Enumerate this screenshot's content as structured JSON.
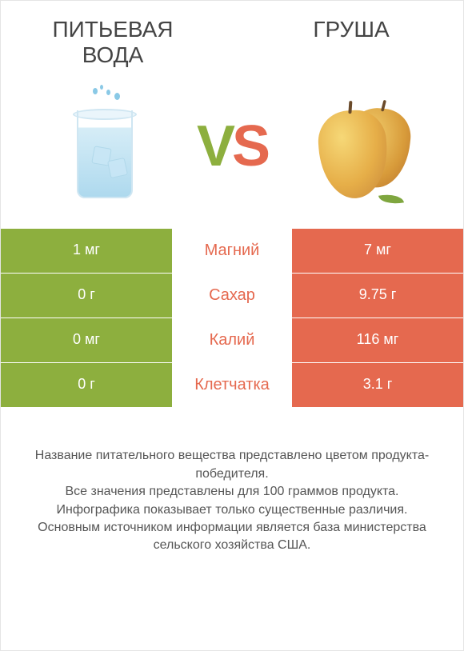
{
  "colors": {
    "left_product": "#8DAF3E",
    "right_product": "#E5694F",
    "background": "#ffffff",
    "row_gap": "#ffffff",
    "text": "#444444",
    "footer_text": "#555555"
  },
  "typography": {
    "title_fontsize": 28,
    "vs_fontsize": 72,
    "cell_fontsize": 18,
    "label_fontsize": 20,
    "footer_fontsize": 16
  },
  "products": {
    "left": {
      "name": "Питьевая вода"
    },
    "right": {
      "name": "Груша"
    }
  },
  "vs": {
    "v": "V",
    "s": "S"
  },
  "table": {
    "type": "infographic-comparison-table",
    "columns": [
      "left_value",
      "nutrient_label",
      "right_value"
    ],
    "rows": [
      {
        "nutrient": "Магний",
        "left": "1 мг",
        "right": "7 мг",
        "winner": "right"
      },
      {
        "nutrient": "Сахар",
        "left": "0 г",
        "right": "9.75 г",
        "winner": "right"
      },
      {
        "nutrient": "Калий",
        "left": "0 мг",
        "right": "116 мг",
        "winner": "right"
      },
      {
        "nutrient": "Клетчатка",
        "left": "0 г",
        "right": "3.1 г",
        "winner": "right"
      }
    ]
  },
  "footer": {
    "line1": "Название питательного вещества представлено цветом продукта-победителя.",
    "line2": "Все значения представлены для 100 граммов продукта.",
    "line3": "Инфографика показывает только существенные различия.",
    "line4": "Основным источником информации является база министерства сельского хозяйства США."
  }
}
